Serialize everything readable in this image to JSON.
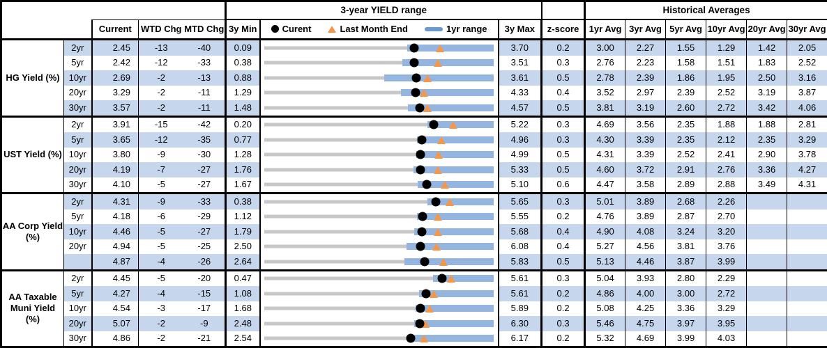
{
  "header": {
    "range_title": "3-year YIELD range",
    "hist_title": "Historical Averages",
    "col_current": "Current",
    "col_wtd": "WTD Chg",
    "col_mtd": "MTD Chg",
    "col_min": "3y Min",
    "col_max": "3y Max",
    "col_z": "z-score",
    "avg_cols": [
      "1yr Avg",
      "3yr Avg",
      "5yr Avg",
      "10yr Avg",
      "20yr Avg",
      "30yr Avg"
    ],
    "legend": {
      "current": "Curent",
      "last_month": "Last Month End",
      "range": "1yr range"
    }
  },
  "colors": {
    "stripe": "#c5d6ed",
    "range_bar": "#93b5df",
    "legend_bar": "#6a98d0",
    "track_gray": "#c7c7c7",
    "triangle_orange": "#f79646",
    "dot_black": "#000000"
  },
  "chart_data": {
    "type": "table",
    "description": "Yield table with embedded 3-year range bars; dot = current, triangle = last month end, blue bar = 1yr range over gray 3y min-max track",
    "groups": [
      {
        "label": "HG Yield (%)",
        "rows": [
          {
            "tenor": "2yr",
            "current": 2.45,
            "wtd": -13,
            "mtd": -40,
            "min": 0.09,
            "max": 3.7,
            "z": 0.2,
            "avgs": [
              3.0,
              2.27,
              1.55,
              1.29,
              1.42,
              2.05
            ],
            "last_month_end": 2.85,
            "range_1yr": [
              2.34,
              3.7
            ]
          },
          {
            "tenor": "5yr",
            "current": 2.42,
            "wtd": -12,
            "mtd": -33,
            "min": 0.38,
            "max": 3.51,
            "z": 0.3,
            "avgs": [
              2.76,
              2.23,
              1.58,
              1.51,
              1.83,
              2.52
            ],
            "last_month_end": 2.75,
            "range_1yr": [
              2.26,
              3.51
            ]
          },
          {
            "tenor": "10yr",
            "current": 2.69,
            "wtd": -2,
            "mtd": -13,
            "min": 0.88,
            "max": 3.61,
            "z": 0.5,
            "avgs": [
              2.78,
              2.39,
              1.86,
              1.95,
              2.5,
              3.16
            ],
            "last_month_end": 2.82,
            "range_1yr": [
              2.31,
              3.61
            ]
          },
          {
            "tenor": "20yr",
            "current": 3.29,
            "wtd": -2,
            "mtd": -11,
            "min": 1.29,
            "max": 4.33,
            "z": 0.4,
            "avgs": [
              3.52,
              2.97,
              2.39,
              2.52,
              3.19,
              3.87
            ],
            "last_month_end": 3.4,
            "range_1yr": [
              3.1,
              4.33
            ]
          },
          {
            "tenor": "30yr",
            "current": 3.57,
            "wtd": -2,
            "mtd": -11,
            "min": 1.48,
            "max": 4.57,
            "z": 0.5,
            "avgs": [
              3.81,
              3.19,
              2.6,
              2.72,
              3.42,
              4.06
            ],
            "last_month_end": 3.68,
            "range_1yr": [
              3.41,
              4.57
            ]
          }
        ]
      },
      {
        "label": "UST Yield (%)",
        "rows": [
          {
            "tenor": "2yr",
            "current": 3.91,
            "wtd": -15,
            "mtd": -42,
            "min": 0.2,
            "max": 5.22,
            "z": 0.3,
            "avgs": [
              4.69,
              3.56,
              2.35,
              1.88,
              1.88,
              2.81
            ],
            "last_month_end": 4.33,
            "range_1yr": [
              3.77,
              5.22
            ]
          },
          {
            "tenor": "5yr",
            "current": 3.65,
            "wtd": -12,
            "mtd": -35,
            "min": 0.77,
            "max": 4.96,
            "z": 0.3,
            "avgs": [
              4.3,
              3.39,
              2.35,
              2.12,
              2.35,
              3.29
            ],
            "last_month_end": 4.0,
            "range_1yr": [
              3.56,
              4.96
            ]
          },
          {
            "tenor": "10yr",
            "current": 3.8,
            "wtd": -9,
            "mtd": -30,
            "min": 1.28,
            "max": 4.99,
            "z": 0.5,
            "avgs": [
              4.31,
              3.39,
              2.52,
              2.41,
              2.9,
              3.78
            ],
            "last_month_end": 4.1,
            "range_1yr": [
              3.74,
              4.99
            ]
          },
          {
            "tenor": "20yr",
            "current": 4.19,
            "wtd": -7,
            "mtd": -27,
            "min": 1.76,
            "max": 5.33,
            "z": 0.5,
            "avgs": [
              4.6,
              3.72,
              2.91,
              2.76,
              3.36,
              4.27
            ],
            "last_month_end": 4.46,
            "range_1yr": [
              4.08,
              5.33
            ]
          },
          {
            "tenor": "30yr",
            "current": 4.1,
            "wtd": -5,
            "mtd": -27,
            "min": 1.67,
            "max": 5.1,
            "z": 0.6,
            "avgs": [
              4.47,
              3.58,
              2.89,
              2.88,
              3.49,
              4.31
            ],
            "last_month_end": 4.37,
            "range_1yr": [
              3.96,
              5.1
            ]
          }
        ]
      },
      {
        "label": "AA Corp Yield (%)",
        "rows": [
          {
            "tenor": "2yr",
            "current": 4.31,
            "wtd": -9,
            "mtd": -33,
            "min": 0.38,
            "max": 5.65,
            "z": 0.3,
            "avgs": [
              5.01,
              3.89,
              2.68,
              2.26,
              null,
              null
            ],
            "last_month_end": 4.64,
            "range_1yr": [
              4.12,
              5.65
            ]
          },
          {
            "tenor": "5yr",
            "current": 4.18,
            "wtd": -6,
            "mtd": -29,
            "min": 1.12,
            "max": 5.55,
            "z": 0.2,
            "avgs": [
              4.76,
              3.89,
              2.87,
              2.7,
              null,
              null
            ],
            "last_month_end": 4.47,
            "range_1yr": [
              4.07,
              5.55
            ]
          },
          {
            "tenor": "10yr",
            "current": 4.46,
            "wtd": -5,
            "mtd": -27,
            "min": 1.79,
            "max": 5.68,
            "z": 0.4,
            "avgs": [
              4.9,
              4.08,
              3.24,
              3.2,
              null,
              null
            ],
            "last_month_end": 4.73,
            "range_1yr": [
              4.33,
              5.68
            ]
          },
          {
            "tenor": "20yr",
            "current": 4.94,
            "wtd": -5,
            "mtd": -25,
            "min": 2.5,
            "max": 6.08,
            "z": 0.4,
            "avgs": [
              5.27,
              4.56,
              3.81,
              3.76,
              null,
              null
            ],
            "last_month_end": 5.19,
            "range_1yr": [
              4.72,
              6.08
            ]
          },
          {
            "tenor": "",
            "current": 4.87,
            "wtd": -4,
            "mtd": -26,
            "min": 2.64,
            "max": 5.83,
            "z": 0.5,
            "avgs": [
              5.13,
              4.46,
              3.87,
              3.99,
              null,
              null
            ],
            "last_month_end": 5.13,
            "range_1yr": [
              4.59,
              5.83
            ]
          }
        ]
      },
      {
        "label": "AA Taxable Muni Yield (%)",
        "rows": [
          {
            "tenor": "2yr",
            "current": 4.45,
            "wtd": -5,
            "mtd": -20,
            "min": 0.47,
            "max": 5.61,
            "z": 0.3,
            "avgs": [
              5.04,
              3.93,
              2.8,
              2.29,
              null,
              null
            ],
            "last_month_end": 4.65,
            "range_1yr": [
              4.24,
              5.61
            ]
          },
          {
            "tenor": "5yr",
            "current": 4.27,
            "wtd": -4,
            "mtd": -15,
            "min": 1.08,
            "max": 5.61,
            "z": 0.2,
            "avgs": [
              4.86,
              4.0,
              3.0,
              2.72,
              null,
              null
            ],
            "last_month_end": 4.42,
            "range_1yr": [
              4.14,
              5.61
            ]
          },
          {
            "tenor": "10yr",
            "current": 4.54,
            "wtd": -3,
            "mtd": -17,
            "min": 1.68,
            "max": 5.89,
            "z": 0.2,
            "avgs": [
              5.08,
              4.25,
              3.36,
              3.29,
              null,
              null
            ],
            "last_month_end": 4.71,
            "range_1yr": [
              4.45,
              5.89
            ]
          },
          {
            "tenor": "20yr",
            "current": 5.07,
            "wtd": -2,
            "mtd": -9,
            "min": 2.48,
            "max": 6.3,
            "z": 0.3,
            "avgs": [
              5.46,
              4.75,
              3.97,
              3.95,
              null,
              null
            ],
            "last_month_end": 5.16,
            "range_1yr": [
              4.97,
              6.3
            ]
          },
          {
            "tenor": "30yr",
            "current": 4.86,
            "wtd": -2,
            "mtd": -21,
            "min": 2.54,
            "max": 6.17,
            "z": 0.2,
            "avgs": [
              5.32,
              4.69,
              3.99,
              4.03,
              null,
              null
            ],
            "last_month_end": 5.07,
            "range_1yr": [
              4.81,
              6.17
            ]
          }
        ]
      }
    ]
  }
}
